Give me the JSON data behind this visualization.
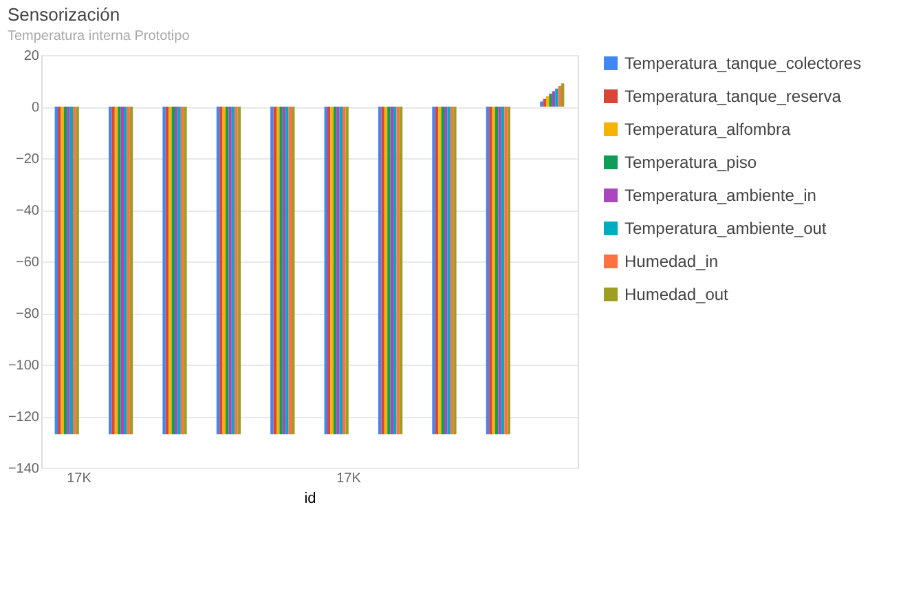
{
  "chart_data": {
    "type": "bar",
    "title": "Sensorización",
    "subtitle": "Temperatura interna Prototipo",
    "xlabel": "id",
    "categories": [
      "17K",
      null,
      null,
      null,
      null,
      "17K",
      null,
      null,
      null,
      null
    ],
    "series": [
      {
        "name": "Temperatura_tanque_colectores",
        "color": "#4285f4",
        "values": [
          -127,
          -127,
          -127,
          -127,
          -127,
          -127,
          -127,
          -127,
          -127,
          2
        ]
      },
      {
        "name": "Temperatura_tanque_reserva",
        "color": "#db4437",
        "values": [
          -127,
          -127,
          -127,
          -127,
          -127,
          -127,
          -127,
          -127,
          -127,
          3
        ]
      },
      {
        "name": "Temperatura_alfombra",
        "color": "#f4b400",
        "values": [
          -127,
          -127,
          -127,
          -127,
          -127,
          -127,
          -127,
          -127,
          -127,
          4
        ]
      },
      {
        "name": "Temperatura_piso",
        "color": "#0f9d58",
        "values": [
          -127,
          -127,
          -127,
          -127,
          -127,
          -127,
          -127,
          -127,
          -127,
          5
        ]
      },
      {
        "name": "Temperatura_ambiente_in",
        "color": "#ab47bc",
        "values": [
          -127,
          -127,
          -127,
          -127,
          -127,
          -127,
          -127,
          -127,
          -127,
          6
        ]
      },
      {
        "name": "Temperatura_ambiente_out",
        "color": "#00acc1",
        "values": [
          -127,
          -127,
          -127,
          -127,
          -127,
          -127,
          -127,
          -127,
          -127,
          7
        ]
      },
      {
        "name": "Humedad_in",
        "color": "#ff7043",
        "values": [
          -127,
          -127,
          -127,
          -127,
          -127,
          -127,
          -127,
          -127,
          -127,
          8
        ]
      },
      {
        "name": "Humedad_out",
        "color": "#9e9d24",
        "values": [
          -127,
          -127,
          -127,
          -127,
          -127,
          -127,
          -127,
          -127,
          -127,
          9
        ]
      }
    ],
    "ylim": [
      -140,
      20
    ],
    "yticks": [
      20,
      0,
      -20,
      -40,
      -60,
      -80,
      -100,
      -120,
      -140
    ],
    "grid": "y",
    "legend": "right"
  }
}
